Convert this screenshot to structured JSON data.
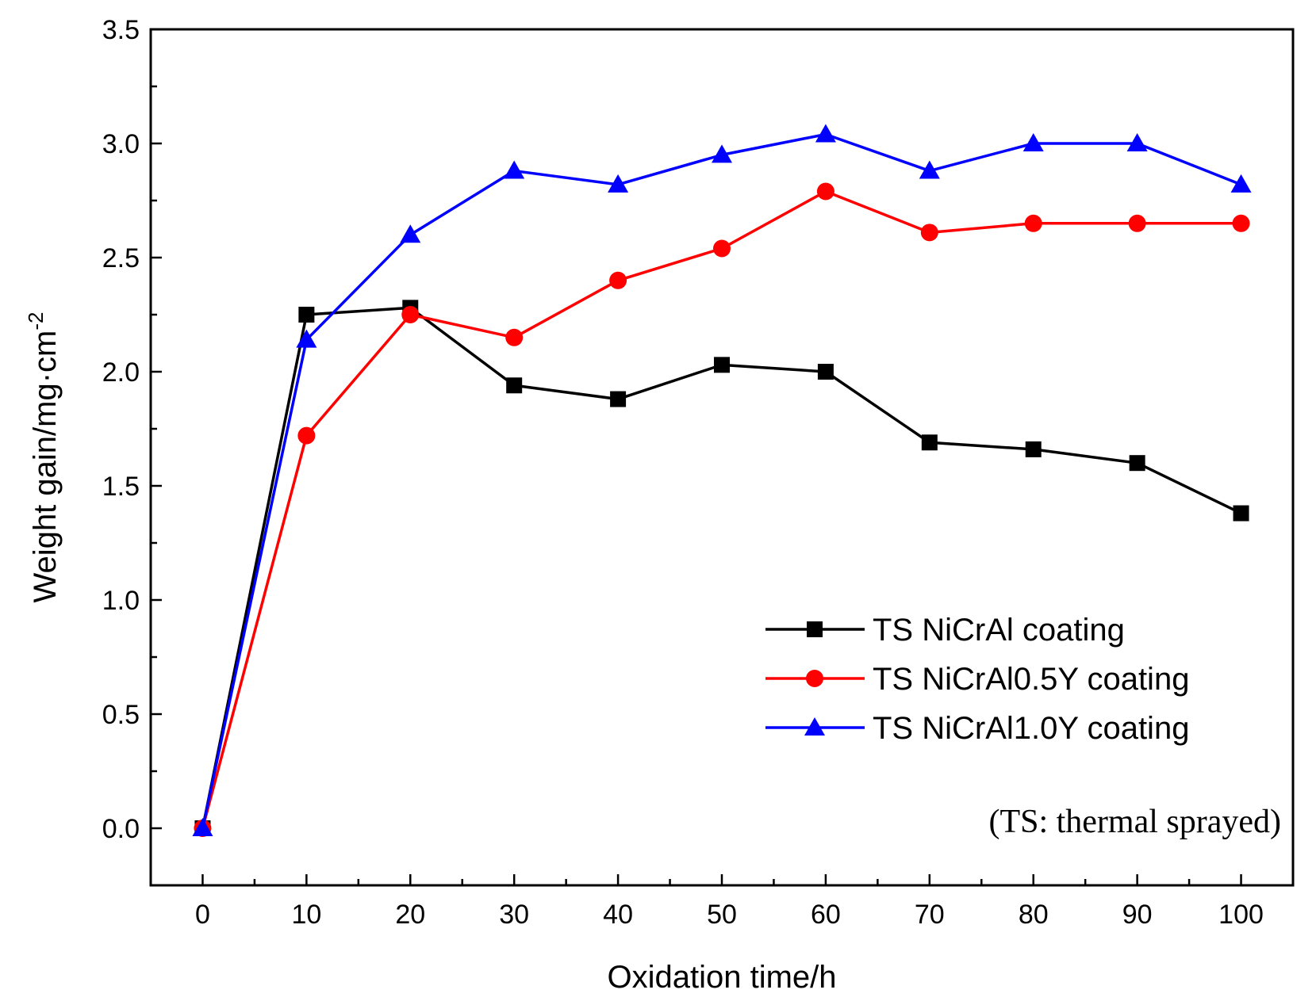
{
  "chart_data": {
    "type": "line",
    "xlabel": "Oxidation time/h",
    "ylabel": "Weight gain/mg·cm",
    "ylabel_sup": "-2",
    "xlim": [
      -5,
      105
    ],
    "ylim": [
      -0.25,
      3.5
    ],
    "x_ticks": [
      0,
      10,
      20,
      30,
      40,
      50,
      60,
      70,
      80,
      90,
      100
    ],
    "y_ticks": [
      0.0,
      0.5,
      1.0,
      1.5,
      2.0,
      2.5,
      3.0,
      3.5
    ],
    "y_tick_labels": [
      "0.0",
      "0.5",
      "1.0",
      "1.5",
      "2.0",
      "2.5",
      "3.0",
      "3.5"
    ],
    "x": [
      0,
      10,
      20,
      30,
      40,
      50,
      60,
      70,
      80,
      90,
      100
    ],
    "series": [
      {
        "name": "TS NiCrAl coating",
        "color": "#000000",
        "marker": "square",
        "values": [
          0.0,
          2.25,
          2.28,
          1.94,
          1.88,
          2.03,
          2.0,
          1.69,
          1.66,
          1.6,
          1.38
        ]
      },
      {
        "name": "TS NiCrAl0.5Y coating",
        "color": "#ff0000",
        "marker": "circle",
        "values": [
          0.0,
          1.72,
          2.25,
          2.15,
          2.4,
          2.54,
          2.79,
          2.61,
          2.65,
          2.65,
          2.65
        ]
      },
      {
        "name": "TS NiCrAl1.0Y coating",
        "color": "#0000ff",
        "marker": "triangle",
        "values": [
          0.0,
          2.14,
          2.6,
          2.88,
          2.82,
          2.95,
          3.04,
          2.88,
          3.0,
          3.0,
          2.82
        ]
      }
    ],
    "legend_position": "lower-right",
    "annotation": "(TS: thermal sprayed)",
    "grid": false
  }
}
